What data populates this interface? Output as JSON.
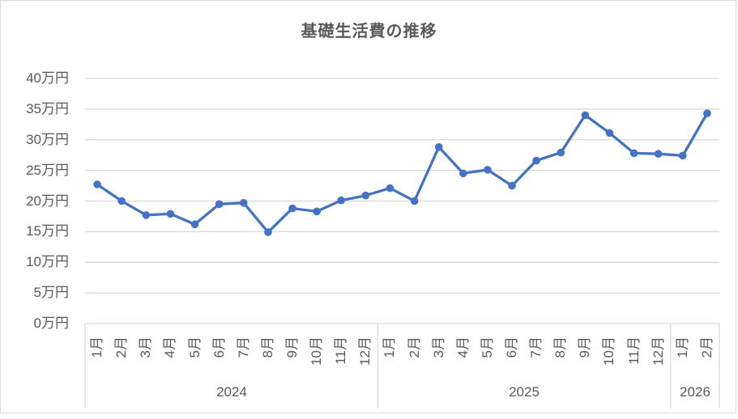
{
  "window": {
    "background": "#FFFFFF",
    "border_color": "#D9D9D9"
  },
  "chart_data": {
    "type": "line",
    "title": "基礎生活費の推移",
    "unit": "万円",
    "ylim": [
      0,
      40
    ],
    "y_tick_step": 5,
    "grid": true,
    "legend": "none",
    "marker": "circle",
    "colors": {
      "series": "#4472C4",
      "grid": "#D9D9D9",
      "text": "#595959"
    },
    "y_ticks": [
      {
        "value": 0,
        "label": "0万円"
      },
      {
        "value": 5,
        "label": "5万円"
      },
      {
        "value": 10,
        "label": "10万円"
      },
      {
        "value": 15,
        "label": "15万円"
      },
      {
        "value": 20,
        "label": "20万円"
      },
      {
        "value": 25,
        "label": "25万円"
      },
      {
        "value": 30,
        "label": "30万円"
      },
      {
        "value": 35,
        "label": "35万円"
      },
      {
        "value": 40,
        "label": "40万円"
      }
    ],
    "groups": [
      {
        "year": "2024",
        "months": [
          "1月",
          "2月",
          "3月",
          "4月",
          "5月",
          "6月",
          "7月",
          "8月",
          "9月",
          "10月",
          "11月",
          "12月"
        ],
        "values": [
          22.7,
          20.0,
          17.7,
          17.9,
          16.2,
          19.5,
          19.7,
          14.9,
          18.8,
          18.3,
          20.1,
          20.9
        ]
      },
      {
        "year": "2025",
        "months": [
          "1月",
          "2月",
          "3月",
          "4月",
          "5月",
          "6月",
          "7月",
          "8月",
          "9月",
          "10月",
          "11月",
          "12月"
        ],
        "values": [
          22.1,
          20.0,
          28.8,
          24.5,
          25.1,
          22.5,
          26.6,
          27.9,
          34.0,
          31.1,
          27.8,
          27.7
        ]
      },
      {
        "year": "2026",
        "months": [
          "1月",
          "2月"
        ],
        "values": [
          27.4,
          34.3
        ]
      }
    ]
  }
}
